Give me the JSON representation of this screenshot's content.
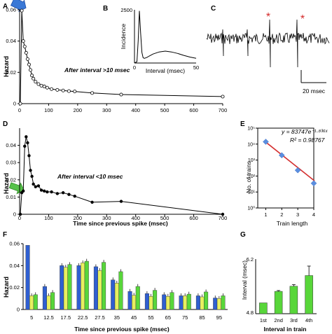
{
  "figure": {
    "panel_letters": [
      "A",
      "B",
      "C",
      "D",
      "E",
      "F",
      "G"
    ],
    "c_scale_label": "20 msec",
    "colors": {
      "line": "#000000",
      "blue_arrow": "#3a78d6",
      "green_arrow": "#56c24a",
      "star": "#d42a2a",
      "fit_line": "#d43030",
      "diamond": "#5b8fe0",
      "bar_blue": "#2f5fd0",
      "bar_yellow": "#e8ef60",
      "bar_green": "#58d63a"
    },
    "icons": [
      "arrow-icon",
      "star-icon",
      "diamond-marker"
    ]
  },
  "chart_data": [
    {
      "panel": "A",
      "type": "line",
      "ylabel": "Hazard",
      "annotation": "After interval >10 msec",
      "xlim": [
        0,
        700
      ],
      "ylim": [
        0,
        0.06
      ],
      "x_ticks": [
        "0",
        "100",
        "200",
        "300",
        "400",
        "500",
        "600",
        "700"
      ],
      "y_ticks": [
        "0",
        "0.02",
        "0.04",
        "0.06"
      ],
      "x": [
        2.5,
        7.5,
        12.5,
        17.5,
        22.5,
        27.5,
        32.5,
        37.5,
        42.5,
        47.5,
        55,
        65,
        75,
        85,
        95,
        110,
        130,
        150,
        170,
        190,
        250,
        350,
        700
      ],
      "y": [
        0,
        0.0595,
        0.04,
        0.0365,
        0.0325,
        0.0285,
        0.025,
        0.0215,
        0.018,
        0.016,
        0.014,
        0.0125,
        0.0115,
        0.011,
        0.0102,
        0.0093,
        0.0088,
        0.0084,
        0.008,
        0.0078,
        0.0068,
        0.0058,
        0.0045
      ]
    },
    {
      "panel": "B",
      "type": "line",
      "xlabel": "Interval (msec)",
      "ylabel": "Incidence",
      "xlim": [
        0,
        50
      ],
      "ylim": [
        0,
        2500
      ],
      "x_ticks": [
        "0",
        "50"
      ],
      "y_ticks": [
        "0",
        "2500"
      ],
      "x": [
        0,
        2,
        3,
        4,
        5,
        6,
        7,
        8,
        10,
        12,
        15,
        20,
        25,
        30,
        35,
        40,
        45,
        50
      ],
      "y": [
        0,
        60,
        1050,
        2450,
        1400,
        500,
        250,
        220,
        260,
        330,
        420,
        520,
        560,
        520,
        450,
        360,
        280,
        220
      ]
    },
    {
      "panel": "D",
      "type": "line",
      "xlabel": "Time since previous spike (msec)",
      "ylabel": "Hazard",
      "annotation": "After interval <10 msec",
      "xlim": [
        0,
        700
      ],
      "ylim": [
        0,
        0.05
      ],
      "x_ticks": [
        "0",
        "100",
        "200",
        "300",
        "400",
        "500",
        "600",
        "700"
      ],
      "y_ticks": [
        "0",
        "0.01",
        "0.02",
        "0.03",
        "0.04"
      ],
      "x": [
        2.5,
        7.5,
        12.5,
        17.5,
        22.5,
        27.5,
        32.5,
        37.5,
        42.5,
        47.5,
        55,
        65,
        75,
        85,
        95,
        110,
        130,
        150,
        170,
        190,
        250,
        350,
        700
      ],
      "y": [
        0,
        0.0125,
        0.0135,
        0.0395,
        0.045,
        0.0415,
        0.034,
        0.0255,
        0.022,
        0.0175,
        0.016,
        0.0165,
        0.014,
        0.0135,
        0.013,
        0.013,
        0.012,
        0.0125,
        0.0115,
        0.0105,
        0.007,
        0.0075,
        0
      ]
    },
    {
      "panel": "E",
      "type": "scatter",
      "xlabel": "Train length",
      "ylabel": "No. of trains",
      "log_y": true,
      "xlim": [
        0.5,
        4
      ],
      "ylim": [
        1,
        100000
      ],
      "x_ticks": [
        "1",
        "2",
        "3",
        "4"
      ],
      "y_ticks": [
        "10⁰",
        "10¹",
        "10²",
        "10³",
        "10⁴",
        "10⁵"
      ],
      "equation": "y = 83747e⁻¹·⁸³⁶ˣ",
      "r_squared": "R² = 0.98767",
      "x": [
        1,
        2,
        3,
        4
      ],
      "y": [
        14000,
        2000,
        230,
        35
      ],
      "fit": {
        "a": 83747,
        "b": -1.836
      }
    },
    {
      "panel": "F",
      "type": "bar",
      "xlabel": "Time since previous spike (msec)",
      "ylabel": "Hazard",
      "ylim": [
        0,
        0.06
      ],
      "y_ticks": [
        "0",
        "0.02",
        "0.04",
        "0.06"
      ],
      "categories": [
        "5",
        "12.5",
        "17.5",
        "22.5",
        "27.5",
        "35",
        "45",
        "55",
        "65",
        "75",
        "85",
        "95"
      ],
      "series": [
        {
          "values": [
            0.0585,
            0.021,
            0.04,
            0.04,
            0.039,
            0.027,
            0.0165,
            0.0145,
            0.0135,
            0.0125,
            0.0125,
            0.0105
          ]
        },
        {
          "values": [
            0.0125,
            0.0125,
            0.0385,
            0.0425,
            0.0355,
            0.024,
            0.013,
            0.012,
            0.012,
            0.0125,
            0.0115,
            0.01
          ]
        },
        {
          "values": [
            0.0135,
            0.0155,
            0.041,
            0.044,
            0.043,
            0.0345,
            0.021,
            0.0175,
            0.0155,
            0.014,
            0.016,
            0.0125
          ]
        }
      ]
    },
    {
      "panel": "G",
      "type": "bar",
      "xlabel": "Interval in train",
      "ylabel": "Interval (msec)",
      "log_y": true,
      "ylim": [
        4.8,
        6.2
      ],
      "y_ticks": [
        "4.8",
        "6.2"
      ],
      "categories": [
        "1st",
        "2nd",
        "3rd",
        "4th"
      ],
      "values": [
        5.05,
        5.33,
        5.46,
        5.74
      ],
      "errors": [
        0,
        0.02,
        0.04,
        0.26
      ]
    }
  ]
}
